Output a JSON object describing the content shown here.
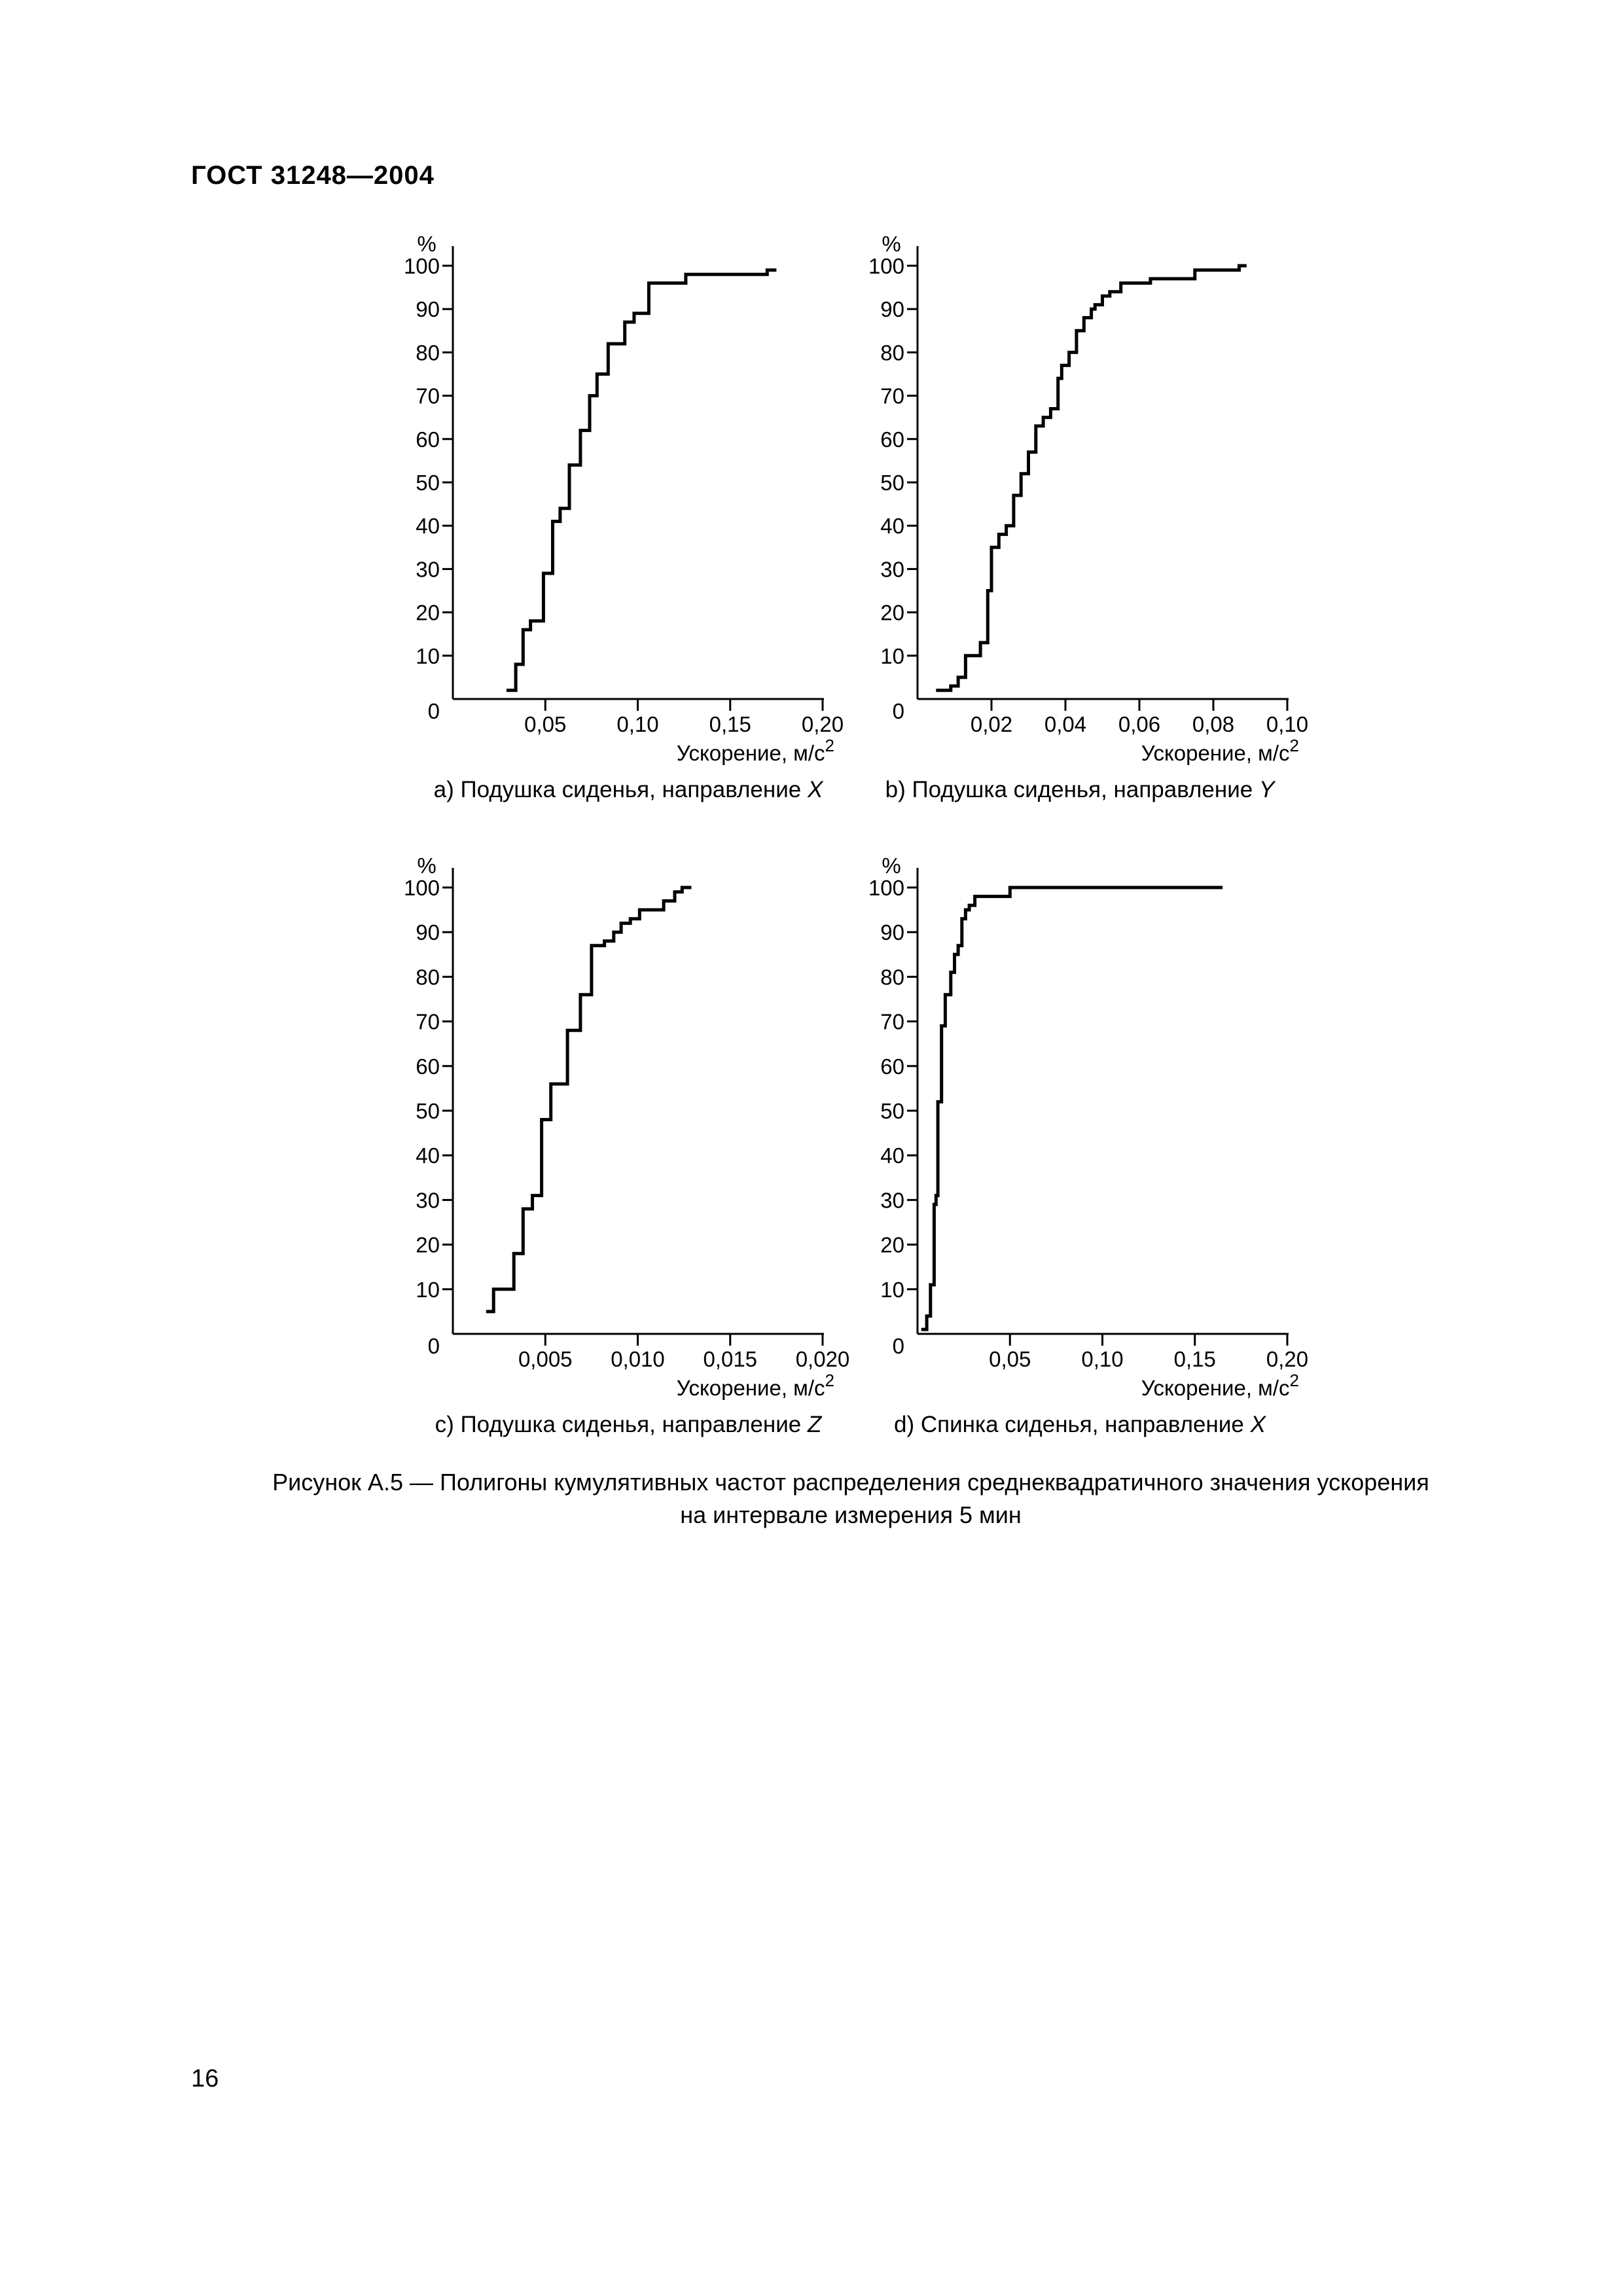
{
  "header": {
    "title": "ГОСТ 31248—2004"
  },
  "figure": {
    "caption_line1": "Рисунок А.5 — Полигоны кумулятивных частот распределения среднеквадратичного значения ускорения",
    "caption_line2": "на интервале измерения 5 мин"
  },
  "page_number": "16",
  "chart_data": [
    {
      "id": "a",
      "type": "line",
      "step": true,
      "caption": "a) Подушка сиденья, направление ",
      "caption_axis": "X",
      "ylabel": "%",
      "xlabel": "Ускорение, м/с",
      "xlabel_sup": "2",
      "xlim": [
        0,
        0.2
      ],
      "ylim": [
        0,
        100
      ],
      "xticks": [
        0.05,
        0.1,
        0.15,
        0.2
      ],
      "xtick_labels": [
        "0,05",
        "0,10",
        "0,15",
        "0,20"
      ],
      "yticks": [
        10,
        20,
        30,
        40,
        50,
        60,
        70,
        80,
        90,
        100
      ],
      "ytick_labels": [
        "10",
        "20",
        "30",
        "40",
        "50",
        "60",
        "70",
        "80",
        "90",
        "100"
      ],
      "origin_label": "0",
      "x": [
        0.029,
        0.034,
        0.034,
        0.038,
        0.038,
        0.042,
        0.042,
        0.049,
        0.049,
        0.054,
        0.054,
        0.058,
        0.058,
        0.063,
        0.063,
        0.069,
        0.069,
        0.074,
        0.074,
        0.078,
        0.078,
        0.084,
        0.084,
        0.093,
        0.093,
        0.098,
        0.098,
        0.106,
        0.106,
        0.126,
        0.126,
        0.17,
        0.17,
        0.175
      ],
      "y": [
        2,
        2,
        8,
        8,
        16,
        16,
        18,
        18,
        29,
        29,
        41,
        41,
        44,
        44,
        54,
        54,
        62,
        62,
        70,
        70,
        75,
        75,
        82,
        82,
        87,
        87,
        89,
        89,
        96,
        96,
        98,
        98,
        99,
        99
      ]
    },
    {
      "id": "b",
      "type": "line",
      "step": true,
      "caption": "b) Подушка сиденья, направление ",
      "caption_axis": "Y",
      "ylabel": "%",
      "xlabel": "Ускорение, м/с",
      "xlabel_sup": "2",
      "xlim": [
        0,
        0.1
      ],
      "ylim": [
        0,
        100
      ],
      "xticks": [
        0.02,
        0.04,
        0.06,
        0.08,
        0.1
      ],
      "xtick_labels": [
        "0,02",
        "0,04",
        "0,06",
        "0,08",
        "0,10"
      ],
      "yticks": [
        10,
        20,
        30,
        40,
        50,
        60,
        70,
        80,
        90,
        100
      ],
      "ytick_labels": [
        "10",
        "20",
        "30",
        "40",
        "50",
        "60",
        "70",
        "80",
        "90",
        "100"
      ],
      "origin_label": "0",
      "x": [
        0.005,
        0.009,
        0.009,
        0.011,
        0.011,
        0.013,
        0.013,
        0.017,
        0.017,
        0.019,
        0.019,
        0.02,
        0.02,
        0.022,
        0.022,
        0.024,
        0.024,
        0.026,
        0.026,
        0.028,
        0.028,
        0.03,
        0.03,
        0.032,
        0.032,
        0.034,
        0.034,
        0.036,
        0.036,
        0.038,
        0.038,
        0.039,
        0.039,
        0.041,
        0.041,
        0.043,
        0.043,
        0.045,
        0.045,
        0.047,
        0.047,
        0.048,
        0.048,
        0.05,
        0.05,
        0.052,
        0.052,
        0.053,
        0.053,
        0.055,
        0.055,
        0.063,
        0.063,
        0.075,
        0.075,
        0.079,
        0.079,
        0.087,
        0.087,
        0.089
      ],
      "y": [
        2,
        2,
        3,
        3,
        5,
        5,
        10,
        10,
        13,
        13,
        25,
        25,
        35,
        35,
        38,
        38,
        40,
        40,
        47,
        47,
        52,
        52,
        57,
        57,
        63,
        63,
        65,
        65,
        67,
        67,
        74,
        74,
        77,
        77,
        80,
        80,
        85,
        85,
        88,
        88,
        90,
        90,
        91,
        91,
        93,
        93,
        94,
        94,
        94,
        94,
        96,
        96,
        97,
        97,
        99,
        99,
        99,
        99,
        100,
        100
      ]
    },
    {
      "id": "c",
      "type": "line",
      "step": true,
      "caption": "c) Подушка сиденья, направление ",
      "caption_axis": "Z",
      "ylabel": "%",
      "xlabel": "Ускорение, м/с",
      "xlabel_sup": "2",
      "xlim": [
        0,
        0.02
      ],
      "ylim": [
        0,
        100
      ],
      "xticks": [
        0.005,
        0.01,
        0.015,
        0.02
      ],
      "xtick_labels": [
        "0,005",
        "0,010",
        "0,015",
        "0,020"
      ],
      "yticks": [
        10,
        20,
        30,
        40,
        50,
        60,
        70,
        80,
        90,
        100
      ],
      "ytick_labels": [
        "10",
        "20",
        "30",
        "40",
        "50",
        "60",
        "70",
        "80",
        "90",
        "100"
      ],
      "origin_label": "0",
      "x": [
        0.0018,
        0.0022,
        0.0022,
        0.0033,
        0.0033,
        0.0038,
        0.0038,
        0.0043,
        0.0043,
        0.0048,
        0.0048,
        0.0053,
        0.0053,
        0.0062,
        0.0062,
        0.0069,
        0.0069,
        0.0075,
        0.0075,
        0.0082,
        0.0082,
        0.0087,
        0.0087,
        0.0091,
        0.0091,
        0.0096,
        0.0096,
        0.0101,
        0.0101,
        0.0114,
        0.0114,
        0.012,
        0.012,
        0.0124,
        0.0124,
        0.0129
      ],
      "y": [
        5,
        5,
        10,
        10,
        18,
        18,
        28,
        28,
        31,
        31,
        48,
        48,
        56,
        56,
        68,
        68,
        76,
        76,
        87,
        87,
        88,
        88,
        90,
        90,
        92,
        92,
        93,
        93,
        95,
        95,
        97,
        97,
        99,
        99,
        100,
        100
      ]
    },
    {
      "id": "d",
      "type": "line",
      "step": true,
      "caption": "d) Спинка сиденья, направление ",
      "caption_axis": "X",
      "ylabel": "%",
      "xlabel": "Ускорение, м/с",
      "xlabel_sup": "2",
      "xlim": [
        0,
        0.2
      ],
      "ylim": [
        0,
        100
      ],
      "xticks": [
        0.05,
        0.1,
        0.15,
        0.2
      ],
      "xtick_labels": [
        "0,05",
        "0,10",
        "0,15",
        "0,20"
      ],
      "yticks": [
        10,
        20,
        30,
        40,
        50,
        60,
        70,
        80,
        90,
        100
      ],
      "ytick_labels": [
        "10",
        "20",
        "30",
        "40",
        "50",
        "60",
        "70",
        "80",
        "90",
        "100"
      ],
      "origin_label": "0",
      "x": [
        0.002,
        0.005,
        0.005,
        0.007,
        0.007,
        0.009,
        0.009,
        0.01,
        0.01,
        0.011,
        0.011,
        0.013,
        0.013,
        0.015,
        0.015,
        0.018,
        0.018,
        0.02,
        0.02,
        0.022,
        0.022,
        0.024,
        0.024,
        0.026,
        0.026,
        0.028,
        0.028,
        0.029,
        0.029,
        0.031,
        0.031,
        0.05,
        0.05,
        0.162,
        0.162,
        0.165
      ],
      "y": [
        1,
        1,
        4,
        4,
        11,
        11,
        29,
        29,
        31,
        31,
        52,
        52,
        69,
        69,
        76,
        76,
        81,
        81,
        85,
        85,
        87,
        87,
        93,
        93,
        95,
        95,
        96,
        96,
        96,
        96,
        98,
        98,
        100,
        100,
        100,
        100
      ]
    }
  ]
}
